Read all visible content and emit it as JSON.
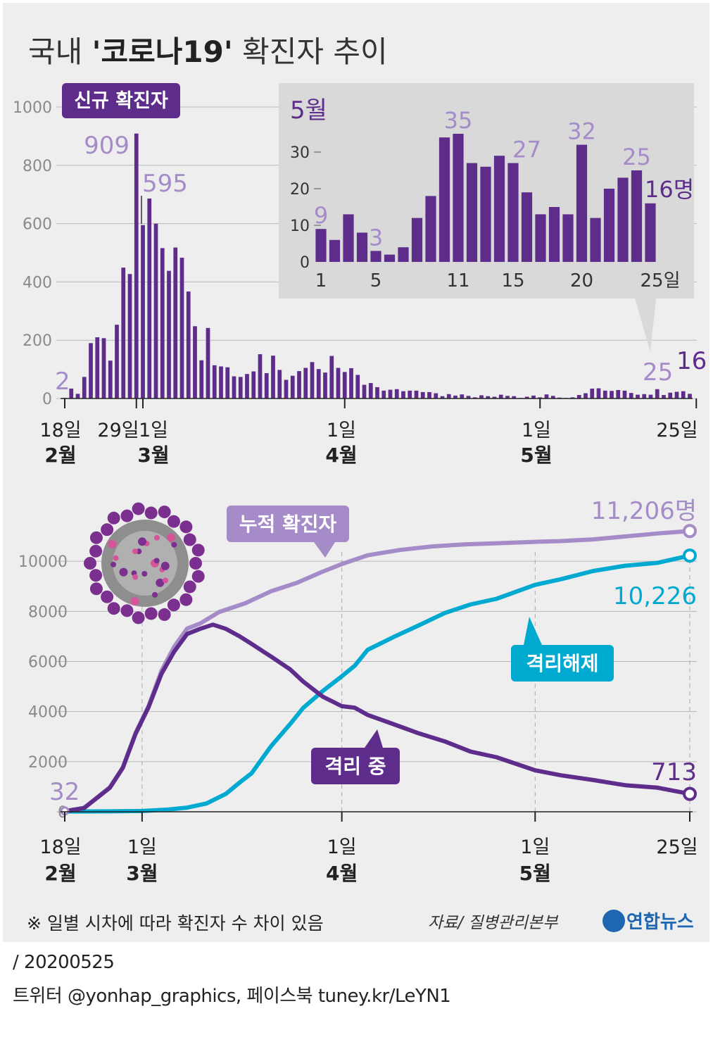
{
  "title": {
    "part1": "국내 ",
    "part2": "'코로나19'",
    "part3": " 확진자 추이"
  },
  "colors": {
    "purple": "#5e2d8c",
    "lavender": "#a58cc8",
    "cyan": "#00a9d0",
    "grid": "#b8b8b8",
    "inset_bg": "#d9d9d9",
    "background": "#eeeeee"
  },
  "chart_data": [
    {
      "type": "bar",
      "title": "신규 확진자",
      "x_start_date": "2020-02-18",
      "x_end_date": "2020-05-25",
      "values": [
        2,
        34,
        16,
        74,
        190,
        210,
        207,
        130,
        253,
        449,
        427,
        909,
        595,
        686,
        600,
        516,
        438,
        518,
        483,
        367,
        248,
        131,
        242,
        114,
        110,
        107,
        76,
        74,
        84,
        93,
        152,
        87,
        147,
        98,
        64,
        78,
        94,
        105,
        125,
        101,
        89,
        146,
        105,
        91,
        104,
        81,
        47,
        53,
        39,
        27,
        30,
        32,
        25,
        27,
        27,
        22,
        22,
        18,
        8,
        15,
        10,
        14,
        9,
        4,
        11,
        8,
        6,
        13,
        9,
        8,
        2,
        6,
        10,
        4,
        14,
        9,
        3,
        2,
        4,
        12,
        18,
        34,
        35,
        27,
        26,
        29,
        27,
        19,
        13,
        15,
        13,
        32,
        12,
        20,
        23,
        25,
        16
      ],
      "ylim": [
        0,
        1000
      ],
      "yticks": [
        "0",
        "200",
        "400",
        "600",
        "800",
        "1000"
      ],
      "x_tick_labels": [
        {
          "day": "18일",
          "month": "2월"
        },
        {
          "day": "29일",
          "month": ""
        },
        {
          "day": "1일",
          "month": "3월"
        },
        {
          "day": "1일",
          "month": "4월"
        },
        {
          "day": "1일",
          "month": "5월"
        },
        {
          "day": "25일",
          "month": ""
        }
      ],
      "annotations": [
        "2",
        "909",
        "595",
        "25",
        "16"
      ],
      "inset": {
        "type": "bar",
        "title": "5월",
        "x": [
          1,
          2,
          3,
          4,
          5,
          6,
          7,
          8,
          9,
          10,
          11,
          12,
          13,
          14,
          15,
          16,
          17,
          18,
          19,
          20,
          21,
          22,
          23,
          24,
          25
        ],
        "values": [
          9,
          6,
          13,
          8,
          3,
          2,
          4,
          12,
          18,
          34,
          35,
          27,
          26,
          29,
          27,
          19,
          13,
          15,
          13,
          32,
          12,
          20,
          23,
          25,
          16
        ],
        "ylim": [
          0,
          35
        ],
        "yticks": [
          "0",
          "10",
          "20",
          "30"
        ],
        "xticks": [
          "1",
          "5",
          "11",
          "15",
          "20",
          "25일"
        ],
        "annotations": [
          "9",
          "3",
          "35",
          "27",
          "32",
          "25",
          "16명"
        ]
      }
    },
    {
      "type": "line",
      "x_start_date": "2020-02-18",
      "x_end_date": "2020-05-25",
      "ylim": [
        0,
        12000
      ],
      "yticks": [
        "0",
        "2000",
        "4000",
        "6000",
        "8000",
        "10000"
      ],
      "x_tick_labels": [
        {
          "day": "18일",
          "month": "2월"
        },
        {
          "day": "1일",
          "month": "3월"
        },
        {
          "day": "1일",
          "month": "4월"
        },
        {
          "day": "1일",
          "month": "5월"
        },
        {
          "day": "25일",
          "month": ""
        }
      ],
      "series": [
        {
          "name": "누적 확진자",
          "end_label": "11,206명",
          "start_label": "32",
          "points": [
            [
              "2020-02-18",
              32
            ],
            [
              "2020-02-21",
              156
            ],
            [
              "2020-02-25",
              977
            ],
            [
              "2020-02-27",
              1766
            ],
            [
              "2020-02-29",
              3150
            ],
            [
              "2020-03-02",
              4212
            ],
            [
              "2020-03-04",
              5621
            ],
            [
              "2020-03-06",
              6593
            ],
            [
              "2020-03-08",
              7313
            ],
            [
              "2020-03-10",
              7513
            ],
            [
              "2020-03-13",
              7979
            ],
            [
              "2020-03-17",
              8320
            ],
            [
              "2020-03-21",
              8799
            ],
            [
              "2020-03-25",
              9137
            ],
            [
              "2020-03-29",
              9583
            ],
            [
              "2020-04-01",
              9887
            ],
            [
              "2020-04-05",
              10237
            ],
            [
              "2020-04-10",
              10450
            ],
            [
              "2020-04-15",
              10591
            ],
            [
              "2020-04-20",
              10674
            ],
            [
              "2020-04-25",
              10718
            ],
            [
              "2020-05-01",
              10774
            ],
            [
              "2020-05-05",
              10806
            ],
            [
              "2020-05-10",
              10874
            ],
            [
              "2020-05-15",
              10991
            ],
            [
              "2020-05-20",
              11110
            ],
            [
              "2020-05-25",
              11206
            ]
          ]
        },
        {
          "name": "격리해제",
          "end_label": "10,226",
          "points": [
            [
              "2020-02-18",
              12
            ],
            [
              "2020-02-25",
              18
            ],
            [
              "2020-03-01",
              30
            ],
            [
              "2020-03-05",
              88
            ],
            [
              "2020-03-08",
              166
            ],
            [
              "2020-03-11",
              333
            ],
            [
              "2020-03-14",
              714
            ],
            [
              "2020-03-16",
              1137
            ],
            [
              "2020-03-18",
              1540
            ],
            [
              "2020-03-21",
              2612
            ],
            [
              "2020-03-24",
              3507
            ],
            [
              "2020-03-26",
              4144
            ],
            [
              "2020-03-29",
              4811
            ],
            [
              "2020-04-01",
              5408
            ],
            [
              "2020-04-03",
              5828
            ],
            [
              "2020-04-05",
              6463
            ],
            [
              "2020-04-09",
              6973
            ],
            [
              "2020-04-13",
              7447
            ],
            [
              "2020-04-17",
              7937
            ],
            [
              "2020-04-21",
              8277
            ],
            [
              "2020-04-25",
              8501
            ],
            [
              "2020-05-01",
              9059
            ],
            [
              "2020-05-05",
              9283
            ],
            [
              "2020-05-10",
              9610
            ],
            [
              "2020-05-15",
              9821
            ],
            [
              "2020-05-20",
              9938
            ],
            [
              "2020-05-25",
              10226
            ]
          ]
        },
        {
          "name": "격리 중",
          "end_label": "713",
          "points": [
            [
              "2020-02-18",
              20
            ],
            [
              "2020-02-21",
              150
            ],
            [
              "2020-02-25",
              959
            ],
            [
              "2020-02-27",
              1748
            ],
            [
              "2020-02-29",
              3120
            ],
            [
              "2020-03-02",
              4170
            ],
            [
              "2020-03-04",
              5500
            ],
            [
              "2020-03-06",
              6400
            ],
            [
              "2020-03-08",
              7100
            ],
            [
              "2020-03-10",
              7300
            ],
            [
              "2020-03-12",
              7470
            ],
            [
              "2020-03-14",
              7300
            ],
            [
              "2020-03-16",
              7024
            ],
            [
              "2020-03-18",
              6700
            ],
            [
              "2020-03-21",
              6200
            ],
            [
              "2020-03-24",
              5681
            ],
            [
              "2020-03-26",
              5200
            ],
            [
              "2020-03-29",
              4600
            ],
            [
              "2020-04-01",
              4216
            ],
            [
              "2020-04-03",
              4155
            ],
            [
              "2020-04-05",
              3867
            ],
            [
              "2020-04-09",
              3500
            ],
            [
              "2020-04-13",
              3125
            ],
            [
              "2020-04-17",
              2808
            ],
            [
              "2020-04-21",
              2400
            ],
            [
              "2020-04-25",
              2179
            ],
            [
              "2020-05-01",
              1654
            ],
            [
              "2020-05-05",
              1456
            ],
            [
              "2020-05-10",
              1267
            ],
            [
              "2020-05-15",
              1060
            ],
            [
              "2020-05-20",
              960
            ],
            [
              "2020-05-25",
              713
            ]
          ]
        }
      ]
    }
  ],
  "footnote": "※ 일별 시차에 따라 확진자 수 차이 있음",
  "source": "자료/ 질병관리본부",
  "logo_text": "연합뉴스",
  "date_line": "/ 20200525",
  "sns_line": "트위터 @yonhap_graphics, 페이스북 tuney.kr/LeYN1"
}
